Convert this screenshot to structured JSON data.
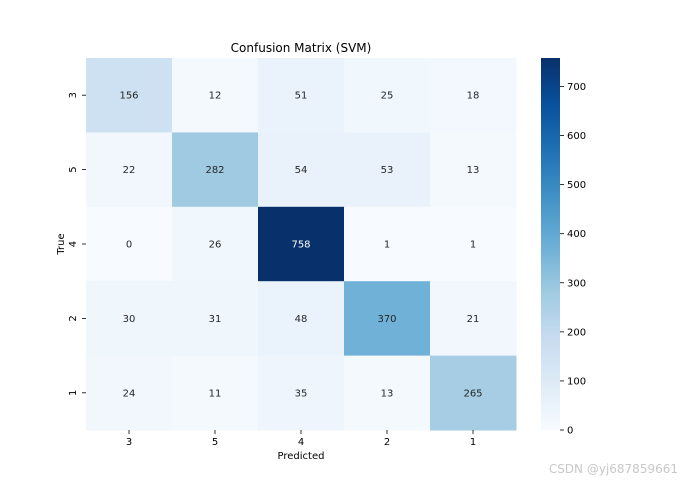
{
  "chart_data": {
    "type": "heatmap",
    "title": "Confusion Matrix (SVM)",
    "xlabel": "Predicted",
    "ylabel": "True",
    "x_categories": [
      "3",
      "5",
      "4",
      "2",
      "1"
    ],
    "y_categories": [
      "3",
      "5",
      "4",
      "2",
      "1"
    ],
    "values": [
      [
        156,
        12,
        51,
        25,
        18
      ],
      [
        22,
        282,
        54,
        53,
        13
      ],
      [
        0,
        26,
        758,
        1,
        1
      ],
      [
        30,
        31,
        48,
        370,
        21
      ],
      [
        24,
        11,
        35,
        13,
        265
      ]
    ],
    "colormap": "Blues",
    "vmin": 0,
    "vmax": 758,
    "colorbar_ticks": [
      0,
      100,
      200,
      300,
      400,
      500,
      600,
      700
    ],
    "colorbar_tick_labels": [
      "0",
      "100",
      "200",
      "300",
      "400",
      "500",
      "600",
      "700"
    ]
  },
  "watermark": "CSDN @yj687859661",
  "colors": {
    "low": "#f7fbff",
    "high": "#08306b",
    "text_dark": "#262626",
    "text_light": "#ffffff"
  }
}
